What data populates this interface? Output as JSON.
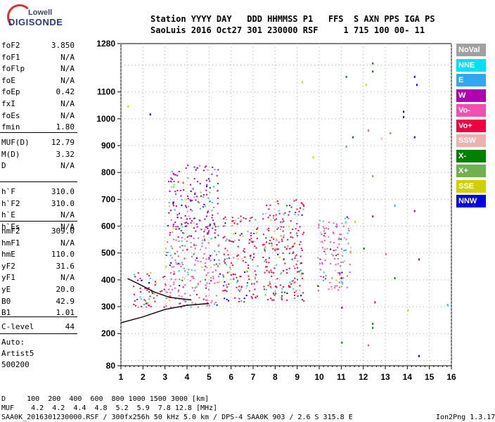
{
  "logo": {
    "top": "Lowell",
    "main": "DIGISONDE"
  },
  "header": {
    "row1": "Station YYYY DAY   DDD HHMMSS P1   FFS  S AXN PPS IGA PS",
    "row2": "SaoLuis 2016 Oct27 301 230000 RSF     1 715 100 00- 11"
  },
  "params": {
    "group1": [
      {
        "name": "foF2",
        "value": "3.850"
      },
      {
        "name": "foF1",
        "value": "N/A"
      },
      {
        "name": "foFlp",
        "value": "N/A"
      },
      {
        "name": "foE",
        "value": "N/A"
      },
      {
        "name": "foEp",
        "value": "0.42"
      },
      {
        "name": "fxI",
        "value": "N/A"
      },
      {
        "name": "foEs",
        "value": "N/A"
      },
      {
        "name": "fmin",
        "value": "1.80"
      }
    ],
    "group2": [
      {
        "name": "MUF(D)",
        "value": "12.79"
      },
      {
        "name": "M(D)",
        "value": "3.32"
      },
      {
        "name": "D",
        "value": "N/A"
      }
    ],
    "group3": [
      {
        "name": "h`F",
        "value": "310.0"
      },
      {
        "name": "h`F2",
        "value": "310.0"
      },
      {
        "name": "h`E",
        "value": "N/A"
      },
      {
        "name": "h`Es",
        "value": "N/A"
      }
    ],
    "group4": [
      {
        "name": "hmF2",
        "value": "309.0"
      },
      {
        "name": "hmF1",
        "value": "N/A"
      },
      {
        "name": "hmE",
        "value": "110.0"
      },
      {
        "name": "yF2",
        "value": "31.6"
      },
      {
        "name": "yF1",
        "value": "N/A"
      },
      {
        "name": "yE",
        "value": "20.0"
      },
      {
        "name": "B0",
        "value": "42.9"
      },
      {
        "name": "B1",
        "value": "1.01"
      }
    ],
    "group5": [
      {
        "name": "C-level",
        "value": "44"
      }
    ],
    "footer": [
      "Auto:",
      "Artist5",
      "500200"
    ]
  },
  "legend": [
    {
      "label": "NoVal",
      "color": "#a0a0a0"
    },
    {
      "label": "NNE",
      "color": "#00e0f0"
    },
    {
      "label": "E",
      "color": "#30a8f0"
    },
    {
      "label": "W",
      "color": "#b000b0"
    },
    {
      "label": "Vo-",
      "color": "#f050b0"
    },
    {
      "label": "Vo+",
      "color": "#f00040"
    },
    {
      "label": "SSW",
      "color": "#f0b0b0"
    },
    {
      "label": "X-",
      "color": "#008000"
    },
    {
      "label": "X+",
      "color": "#70b050"
    },
    {
      "label": "SSE",
      "color": "#d0d000"
    },
    {
      "label": "NNW",
      "color": "#0000e0"
    }
  ],
  "bottom": {
    "d_row": "D     100  200  400  600  800 1000 1500 3000 [km]",
    "muf_row": "MUF    4.2  4.2  4.4  4.8  5.2  5.9  7.8 12.8 [MHz]",
    "info": "SAA0K_2016301230000.RSF / 300fx256h 50 kHz 5.0 km / DPS-4 SAA0K 903 / 2.6 S 315.8 E",
    "version": "Ion2Png 1.3.17"
  },
  "chart_data": {
    "type": "scatter",
    "xlim": [
      1,
      16
    ],
    "ylim": [
      80,
      1280
    ],
    "x_ticks": [
      "1",
      "2",
      "3",
      "4",
      "5",
      "6",
      "7",
      "8",
      "9",
      "10",
      "11",
      "12",
      "13",
      "14",
      "15",
      "16"
    ],
    "y_ticks": [
      "80",
      "200",
      "300",
      "400",
      "500",
      "600",
      "700",
      "800",
      "900",
      "1000",
      "1100",
      "1280"
    ],
    "bands": [
      {
        "xmin": 1.5,
        "xmax": 3.0,
        "ymin": 300,
        "ymax": 430,
        "color": "#f00040"
      },
      {
        "xmin": 3.0,
        "xmax": 5.5,
        "ymin": 300,
        "ymax": 560,
        "color": "#f050b0"
      },
      {
        "xmin": 3.1,
        "xmax": 5.4,
        "ymin": 560,
        "ymax": 830,
        "color": "#b000b0"
      },
      {
        "xmin": 5.6,
        "xmax": 7.2,
        "ymin": 320,
        "ymax": 640,
        "color": "#f00040"
      },
      {
        "xmin": 7.4,
        "xmax": 9.3,
        "ymin": 320,
        "ymax": 700,
        "color": "#f00040"
      },
      {
        "xmin": 9.9,
        "xmax": 11.4,
        "ymin": 360,
        "ymax": 640,
        "color": "#f050b0"
      }
    ],
    "trace_low": [
      [
        1,
        240
      ],
      [
        2,
        262
      ],
      [
        3,
        290
      ],
      [
        4,
        305
      ],
      [
        5,
        312
      ]
    ],
    "trace_high": [
      [
        1.3,
        405
      ],
      [
        1.8,
        385
      ],
      [
        2.5,
        355
      ],
      [
        3.2,
        335
      ],
      [
        4.2,
        325
      ]
    ],
    "sparse_points": [
      [
        12.4,
        1210,
        "#008000"
      ],
      [
        12.4,
        1180,
        "#008000"
      ],
      [
        12.1,
        1130,
        "#d0d000"
      ],
      [
        11.2,
        1160,
        "#008000"
      ],
      [
        14.3,
        1160,
        "#0000e0"
      ],
      [
        14.4,
        1130,
        "#0000e0"
      ],
      [
        13.8,
        1030,
        "#0000e0"
      ],
      [
        13.8,
        1010,
        "#0000e0"
      ],
      [
        14.3,
        935,
        "#0000e0"
      ],
      [
        12.2,
        960,
        "#f050b0"
      ],
      [
        11.5,
        935,
        "#008000"
      ],
      [
        12.8,
        930,
        "#f0b0b0"
      ],
      [
        13.2,
        950,
        "#70b050"
      ],
      [
        11.2,
        900,
        "#30a8f0"
      ],
      [
        12.4,
        790,
        "#70b050"
      ],
      [
        14.3,
        660,
        "#b000b0"
      ],
      [
        12.4,
        640,
        "#b000b0"
      ],
      [
        13.4,
        680,
        "#30a8f0"
      ],
      [
        12.0,
        520,
        "#008000"
      ],
      [
        13.0,
        500,
        "#f050b0"
      ],
      [
        14.5,
        480,
        "#b000b0"
      ],
      [
        11.0,
        300,
        "#b000b0"
      ],
      [
        12.5,
        320,
        "#f00040"
      ],
      [
        14.0,
        290,
        "#d0d000"
      ],
      [
        12.4,
        240,
        "#008000"
      ],
      [
        12.4,
        225,
        "#008000"
      ],
      [
        11.0,
        170,
        "#008000"
      ],
      [
        12.2,
        160,
        "#f050b0"
      ],
      [
        14.5,
        120,
        "#0000e0"
      ],
      [
        15.8,
        310,
        "#30a8f0"
      ],
      [
        1.3,
        1050,
        "#d0d000"
      ],
      [
        2.3,
        1020,
        "#0000e0"
      ],
      [
        9.7,
        860,
        "#d0d000"
      ],
      [
        9.2,
        1140,
        "#d0d000"
      ],
      [
        13.4,
        410,
        "#008000"
      ],
      [
        11.6,
        620,
        "#d0d000"
      ]
    ]
  }
}
